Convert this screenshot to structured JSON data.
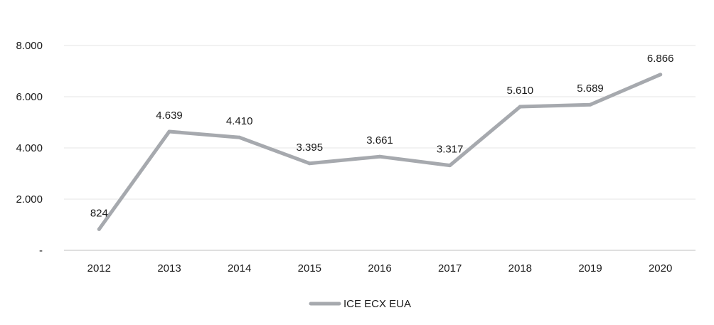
{
  "chart_data": {
    "type": "line",
    "title": "",
    "xlabel": "",
    "ylabel": "",
    "categories": [
      "2012",
      "2013",
      "2014",
      "2015",
      "2016",
      "2017",
      "2018",
      "2019",
      "2020"
    ],
    "series": [
      {
        "name": "ICE ECX EUA",
        "values": [
          824,
          4639,
          4410,
          3395,
          3661,
          3317,
          5610,
          5689,
          6866
        ],
        "labels": [
          "824",
          "4.639",
          "4.410",
          "3.395",
          "3.661",
          "3.317",
          "5.610",
          "5.689",
          "6.866"
        ],
        "color": "#a6a9ae"
      }
    ],
    "ylim": [
      0,
      8000
    ],
    "yticks": [
      0,
      2000,
      4000,
      6000,
      8000
    ],
    "ytick_labels": [
      "-",
      "2.000",
      "4.000",
      "6.000",
      "8.000"
    ],
    "grid": true,
    "legend_position": "bottom"
  }
}
